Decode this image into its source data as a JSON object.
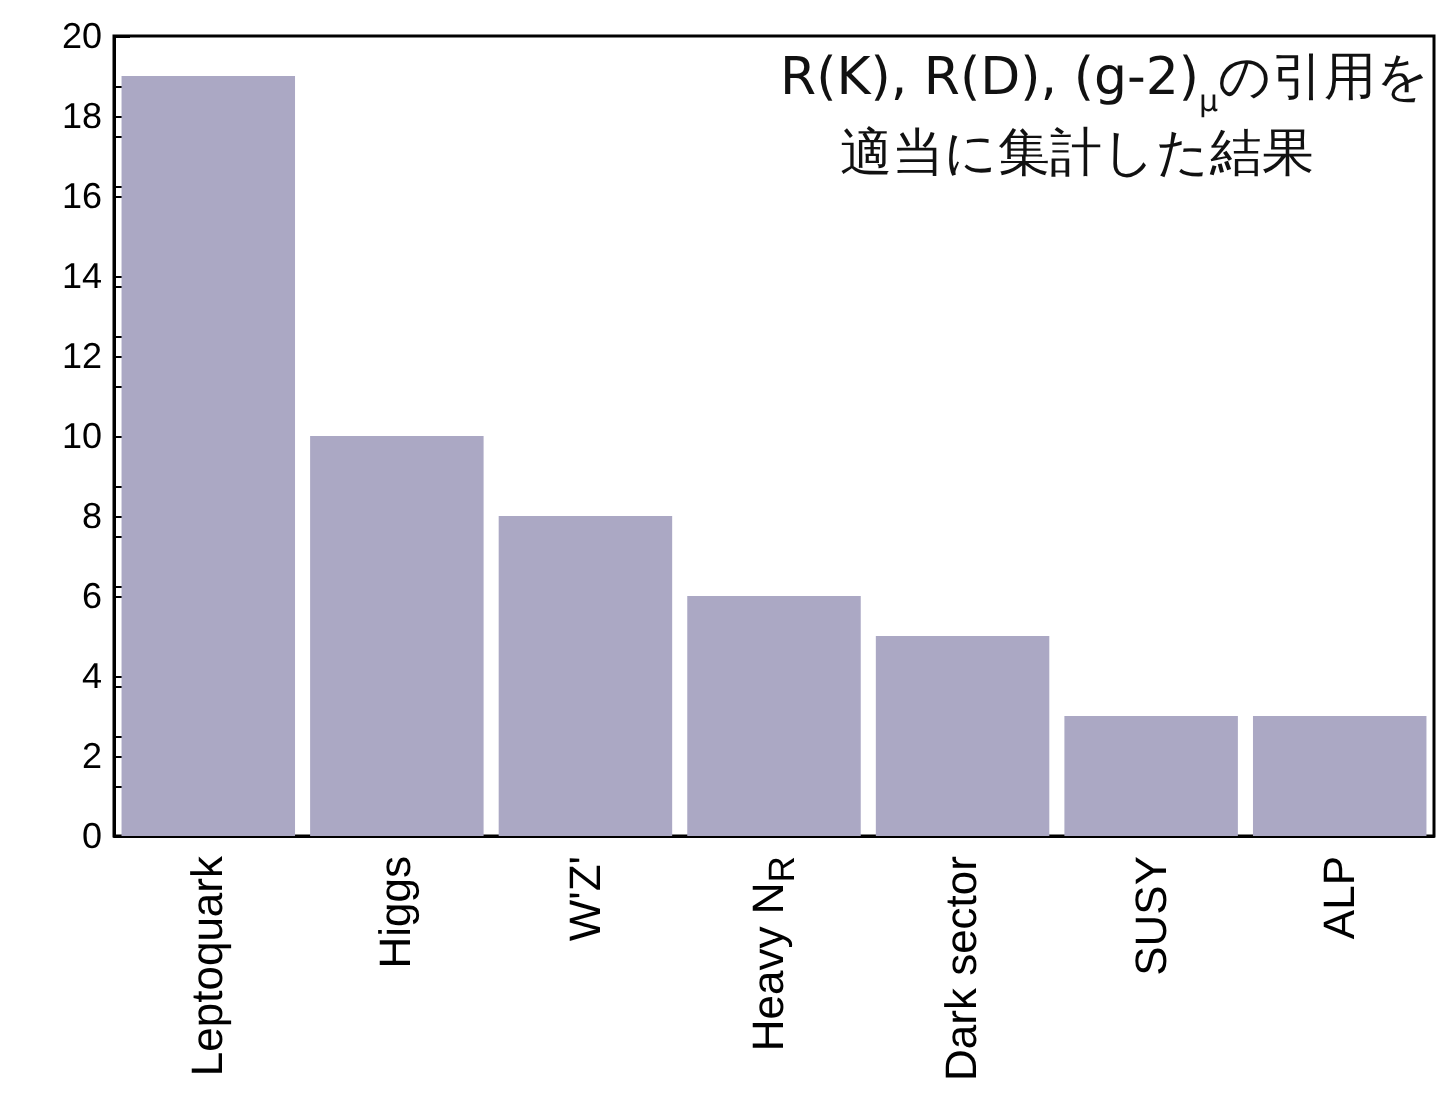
{
  "chart_data": {
    "type": "bar",
    "categories": [
      "Leptoquark",
      "Higgs",
      "W'Z'",
      "Heavy N$_{R}$",
      "Dark sector",
      "SUSY",
      "ALP"
    ],
    "values": [
      19,
      10,
      8,
      6,
      5,
      3,
      3
    ],
    "color": "#aba8c4",
    "ylim": [
      0,
      20
    ],
    "yticks": [
      0,
      2,
      4,
      6,
      8,
      10,
      12,
      14,
      16,
      18,
      20
    ],
    "grid": false,
    "annotations": [
      "R(K), R(D), (g-2)$_{μ}$の引用を",
      "適当に集計した結果"
    ]
  }
}
